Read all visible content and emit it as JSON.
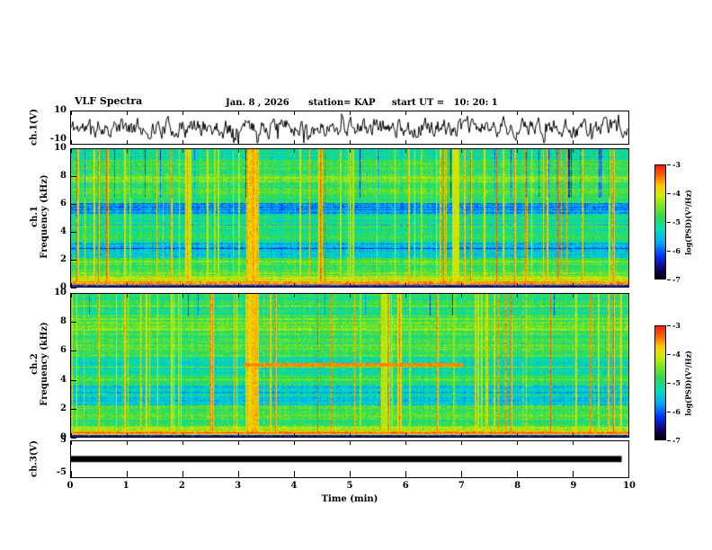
{
  "header": {
    "title": "VLF Spectra",
    "date": "Jan. 8 , 2026",
    "station": "station= KAP",
    "start_ut": "start UT =   10: 20: 1"
  },
  "x_axis": {
    "label": "Time (min)",
    "ticks": [
      "0",
      "1",
      "2",
      "3",
      "4",
      "5",
      "6",
      "7",
      "8",
      "9",
      "10"
    ],
    "range_min": [
      0,
      10
    ]
  },
  "panels": {
    "ch1v": {
      "label": "ch.1(V)",
      "y_ticks": [
        "10",
        "-10"
      ],
      "y_range_V": [
        -10,
        10
      ]
    },
    "spec1": {
      "label_channel": "ch.1",
      "label_axis": "Frequency (kHz)",
      "y_ticks": [
        "10",
        "8",
        "6",
        "4",
        "2",
        "0"
      ],
      "y_range_kHz": [
        0,
        10
      ]
    },
    "spec2": {
      "label_channel": "ch.2",
      "label_axis": "Frequency (kHz)",
      "y_ticks": [
        "10",
        "8",
        "6",
        "4",
        "2",
        "0"
      ],
      "y_range_kHz": [
        0,
        10
      ]
    },
    "ch3v": {
      "label": "ch.3(V)",
      "y_ticks": [
        "5",
        "-5"
      ],
      "y_range_V": [
        -5,
        5
      ]
    }
  },
  "colorbar": {
    "label": "log(PSD)(V²/Hz)",
    "ticks": [
      "-3",
      "-4",
      "-5",
      "-6",
      "-7"
    ],
    "range": [
      -7,
      -3
    ]
  },
  "chart_data": [
    {
      "type": "line",
      "name": "ch1_waveform",
      "panel": "ch.1(V)",
      "x_range_min": [
        0,
        10
      ],
      "y_range_V": [
        -10,
        10
      ],
      "description": "Dense black broadband noise waveform, typical amplitude ±6 V about 0 V with occasional spikes toward ±9 V, spanning 0 to 10 min",
      "render": {
        "seed": 11,
        "persistence": 0.55,
        "scale": 9,
        "spike_prob": 0.05,
        "spike_amp": 6
      }
    },
    {
      "type": "heatmap",
      "name": "ch1_spectrogram",
      "panel": "ch.1 Frequency (kHz)",
      "x_range_min": [
        0,
        10
      ],
      "y_range_kHz": [
        0,
        10
      ],
      "z_log_psd_range": [
        -7,
        -3
      ],
      "colormap": "rainbow: red=-3, yellow=-4, green=-5, blue=-6, black=-7",
      "features": [
        "intense red sferic line 0.15-0.35 kHz across full record",
        "yellow band 0.35-0.7 kHz",
        "blue-cyan quiet band 2.1-3.2 kHz",
        "dark blue band 5.3-6.1 kHz",
        "bright green-yellow band 7.6-8.2 kHz",
        "blue vertical dropouts above 9.3 kHz",
        "many thin red vertical sferic streaks, broad yellow burst near 3.2 min"
      ],
      "render": {
        "seed": 23,
        "noise": 0.16,
        "bands": [
          [
            0,
            0.12,
            0.18
          ],
          [
            0.12,
            0.35,
            0.9
          ],
          [
            0.35,
            0.7,
            0.72
          ],
          [
            0.7,
            1.1,
            0.62
          ],
          [
            1.1,
            2.1,
            0.56
          ],
          [
            2.1,
            3.2,
            0.38
          ],
          [
            3.2,
            4.6,
            0.52
          ],
          [
            4.6,
            5.3,
            0.47
          ],
          [
            5.3,
            6.1,
            0.3
          ],
          [
            6.1,
            7.6,
            0.55
          ],
          [
            7.6,
            8.2,
            0.64
          ],
          [
            8.2,
            9.3,
            0.53
          ],
          [
            9.3,
            10,
            0.47
          ]
        ],
        "streaks": {
          "count": 60,
          "min": 0.08,
          "max": 0.32
        },
        "wide_streaks": [
          {
            "x": 3.25,
            "w": 0.18,
            "s": 0.2
          },
          {
            "x": 6.9,
            "w": 0.1,
            "s": 0.15
          },
          {
            "x": 2.1,
            "w": 0.08,
            "s": 0.12
          }
        ],
        "dark_cols": {
          "count": 26,
          "fmin": 6.5,
          "s": 0.3
        },
        "segments": []
      }
    },
    {
      "type": "heatmap",
      "name": "ch2_spectrogram",
      "panel": "ch.2 Frequency (kHz)",
      "x_range_min": [
        0,
        10
      ],
      "y_range_kHz": [
        0,
        10
      ],
      "z_log_psd_range": [
        -7,
        -3
      ],
      "colormap": "rainbow: red=-3, yellow=-4, green=-5, blue=-6, black=-7",
      "features": [
        "intense red sferic line 0.15-0.35 kHz across full record",
        "cyan-blue quiet band 2.2-3.6 kHz",
        "blue band 4.4-5.6 kHz with red horizontal segment near 5 kHz between 3.1 and 7 min",
        "many thin red vertical sferic streaks, broad yellow burst near 3.2 min"
      ],
      "render": {
        "seed": 47,
        "noise": 0.16,
        "bands": [
          [
            0,
            0.12,
            0.18
          ],
          [
            0.12,
            0.35,
            0.9
          ],
          [
            0.35,
            0.7,
            0.7
          ],
          [
            0.7,
            2.2,
            0.56
          ],
          [
            2.2,
            3.6,
            0.4
          ],
          [
            3.6,
            4.4,
            0.52
          ],
          [
            4.4,
            5.6,
            0.44
          ],
          [
            5.6,
            7.5,
            0.56
          ],
          [
            7.5,
            8.3,
            0.6
          ],
          [
            8.3,
            10,
            0.52
          ]
        ],
        "streaks": {
          "count": 60,
          "min": 0.08,
          "max": 0.32
        },
        "wide_streaks": [
          {
            "x": 3.25,
            "w": 0.18,
            "s": 0.2
          },
          {
            "x": 5.6,
            "w": 0.1,
            "s": 0.12
          }
        ],
        "dark_cols": {
          "count": 10,
          "fmin": 8.5,
          "s": 0.25
        },
        "segments": [
          {
            "f0": 4.92,
            "f1": 5.15,
            "x0": 3.1,
            "x1": 7.05,
            "t": 0.88
          }
        ]
      }
    },
    {
      "type": "line",
      "name": "ch3_waveform",
      "panel": "ch.3(V)",
      "x_range_min": [
        0,
        10
      ],
      "y_range_V": [
        -5,
        5
      ],
      "description": "Saturated solid black horizontal bar from 0 to ~9.9 min spanning roughly -0.8 to +0.9 V",
      "render": {
        "bar_x_min": [
          0,
          9.88
        ],
        "bar_v": [
          -0.8,
          0.9
        ]
      }
    }
  ]
}
